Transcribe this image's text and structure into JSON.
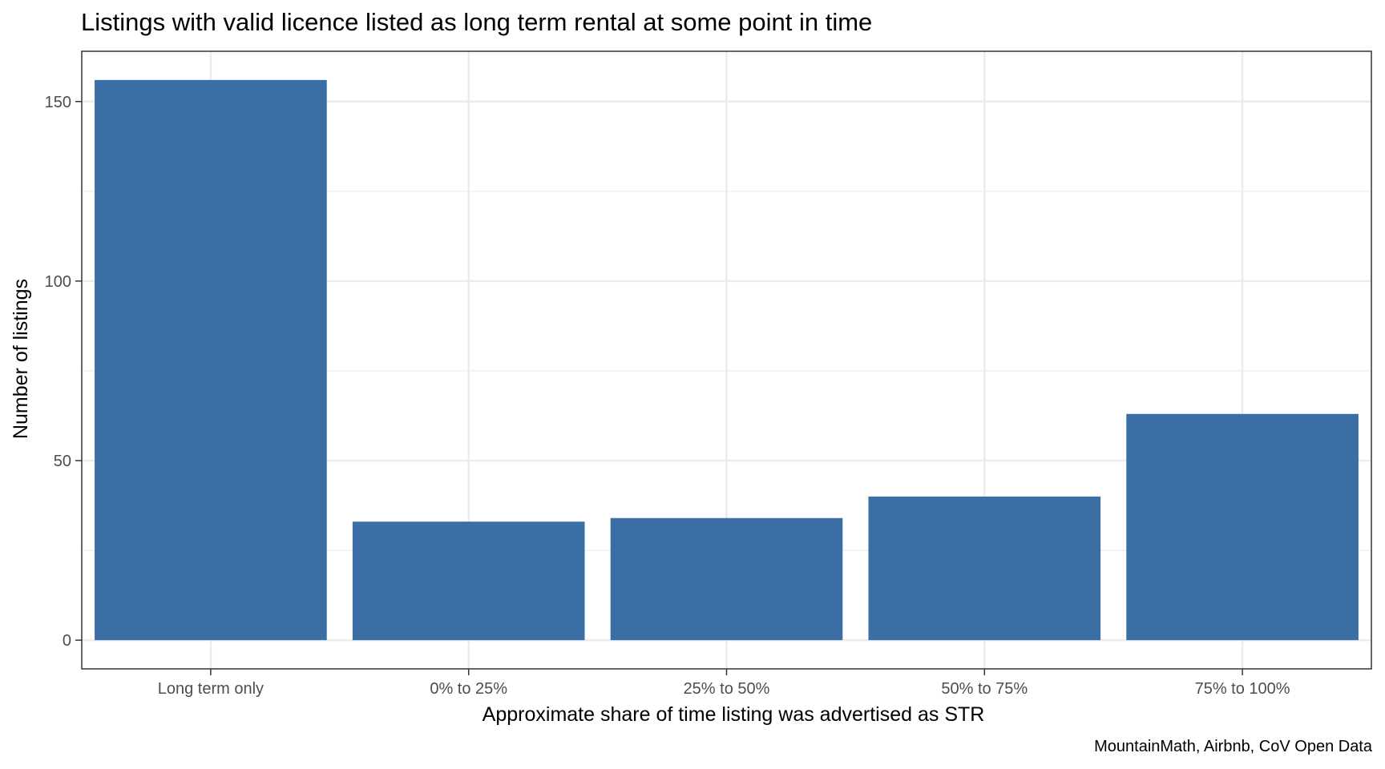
{
  "chart_data": {
    "type": "bar",
    "title": "Listings with valid licence listed as long term rental at some point in time",
    "xlabel": "Approximate share of time listing was advertised as STR",
    "ylabel": "Number of listings",
    "caption": "MountainMath, Airbnb, CoV Open Data",
    "categories": [
      "Long term only",
      "0% to 25%",
      "25% to 50%",
      "50% to 75%",
      "75% to 100%"
    ],
    "values": [
      156,
      33,
      34,
      40,
      63
    ],
    "ylim": [
      -8,
      164
    ],
    "yticks": [
      0,
      50,
      100,
      150
    ],
    "yticks_minor": [
      25,
      75,
      125
    ],
    "grid": true,
    "bar_color": "#3a6ea5",
    "grid_color": "#ebebeb",
    "panel_border_color": "#333333"
  }
}
